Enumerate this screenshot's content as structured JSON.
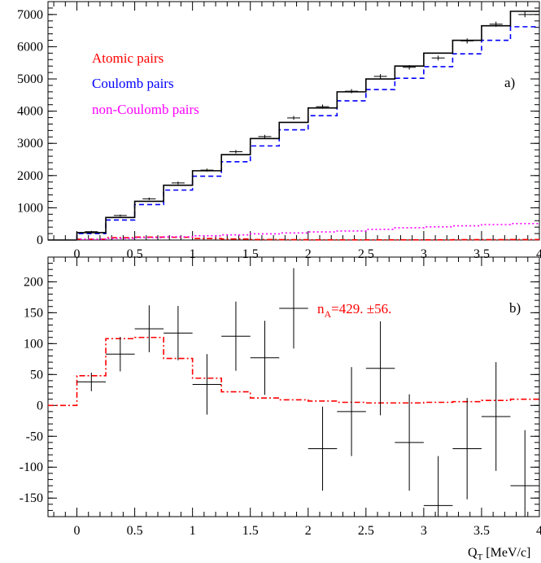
{
  "chart_data": [
    {
      "panel": "a)",
      "type": "step",
      "xlim": [
        -0.25,
        4
      ],
      "ylim": [
        0,
        7400
      ],
      "x_ticks": [
        0,
        0.5,
        1,
        1.5,
        2,
        2.5,
        3,
        3.5,
        4
      ],
      "x_tick_labels": [
        "0",
        "0.5",
        "1",
        "1.5",
        "2",
        "2.5",
        "3",
        "3.5",
        "4"
      ],
      "y_ticks": [
        0,
        1000,
        2000,
        3000,
        4000,
        5000,
        6000,
        7000
      ],
      "y_tick_labels": [
        "0",
        "1000",
        "2000",
        "3000",
        "4000",
        "5000",
        "6000",
        "7000"
      ],
      "legend": [
        {
          "label": "Atomic pairs",
          "color": "#ff0000"
        },
        {
          "label": "Coulomb pairs",
          "color": "#0000ff"
        },
        {
          "label": "non-Coulomb pairs",
          "color": "#ff00ff"
        }
      ],
      "bin_edges": [
        0,
        0.25,
        0.5,
        0.75,
        1,
        1.25,
        1.5,
        1.75,
        2,
        2.25,
        2.5,
        2.75,
        3,
        3.25,
        3.5,
        3.75,
        4
      ],
      "series": [
        {
          "name": "Atomic pairs",
          "color": "#ff0000",
          "style": "dashdot",
          "values": [
            25,
            70,
            90,
            85,
            45,
            30,
            15,
            10,
            5,
            5,
            5,
            5,
            5,
            10,
            10,
            15
          ]
        },
        {
          "name": "Coulomb pairs",
          "color": "#0000ff",
          "style": "dashed",
          "values": [
            200,
            620,
            1100,
            1550,
            1980,
            2430,
            2920,
            3420,
            3860,
            4320,
            4670,
            5020,
            5380,
            5780,
            6200,
            6620
          ]
        },
        {
          "name": "non-Coulomb pairs",
          "color": "#ff00ff",
          "style": "dotted",
          "values": [
            25,
            50,
            75,
            100,
            130,
            160,
            190,
            220,
            250,
            280,
            330,
            380,
            410,
            440,
            480,
            510
          ]
        },
        {
          "name": "",
          "color": "#000000",
          "style": "solid",
          "values": [
            230,
            700,
            1200,
            1700,
            2150,
            2650,
            3150,
            3650,
            4100,
            4600,
            5000,
            5400,
            5800,
            6200,
            6650,
            7100
          ]
        }
      ],
      "data": {
        "x": [
          0.125,
          0.375,
          0.625,
          0.875,
          1.125,
          1.375,
          1.625,
          1.875,
          2.125,
          2.375,
          2.625,
          2.875,
          3.125,
          3.375,
          3.625,
          3.875
        ],
        "y": [
          260,
          760,
          1280,
          1770,
          2170,
          2740,
          3210,
          3790,
          4140,
          4620,
          5080,
          5360,
          5650,
          6180,
          6700,
          7000
        ],
        "yerr": [
          25,
          30,
          40,
          45,
          45,
          55,
          55,
          60,
          65,
          65,
          70,
          70,
          75,
          80,
          80,
          85
        ]
      }
    },
    {
      "panel": "b)",
      "type": "scatter",
      "xlim": [
        -0.25,
        4
      ],
      "ylim": [
        -180,
        240
      ],
      "xlabel": "Q",
      "xlabel_sub": "T",
      "xlabel_unit": "[MeV/c]",
      "x_ticks": [
        0,
        0.5,
        1,
        1.5,
        2,
        2.5,
        3,
        3.5,
        4
      ],
      "x_tick_labels": [
        "0",
        "0.5",
        "1",
        "1.5",
        "2",
        "2.5",
        "3",
        "3.5",
        "4"
      ],
      "y_ticks": [
        -150,
        -100,
        -50,
        0,
        50,
        100,
        150,
        200
      ],
      "y_tick_labels": [
        "-150",
        "-100",
        "-50",
        "0",
        "50",
        "100",
        "150",
        "200"
      ],
      "annotation": {
        "main": "n",
        "sub": "A",
        "rest": "=429. ±56.",
        "color": "#ff0000"
      },
      "data": {
        "x": [
          0.125,
          0.375,
          0.625,
          0.875,
          1.125,
          1.375,
          1.625,
          1.875,
          2.125,
          2.375,
          2.625,
          2.875,
          3.125,
          3.375,
          3.625,
          3.875
        ],
        "y": [
          38,
          83,
          124,
          117,
          34,
          112,
          77,
          157,
          -70,
          -10,
          60,
          -60,
          -162,
          -70,
          -18,
          -130
        ],
        "yerr": [
          15,
          28,
          38,
          44,
          49,
          56,
          60,
          65,
          68,
          72,
          76,
          78,
          80,
          82,
          88,
          90
        ]
      },
      "fit": {
        "name": "",
        "color": "#ff0000",
        "style": "dashdot",
        "bin_edges": [
          -0.25,
          0,
          0.25,
          0.5,
          0.75,
          1,
          1.25,
          1.5,
          1.75,
          2,
          2.25,
          2.5,
          2.75,
          3,
          3.25,
          3.5,
          3.75,
          4
        ],
        "values": [
          0,
          48,
          108,
          110,
          76,
          44,
          22,
          12,
          9,
          7,
          5,
          4,
          4,
          5,
          6,
          8,
          10
        ]
      }
    }
  ]
}
